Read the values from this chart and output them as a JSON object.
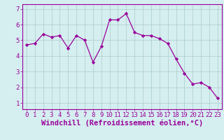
{
  "x": [
    0,
    1,
    2,
    3,
    4,
    5,
    6,
    7,
    8,
    9,
    10,
    11,
    12,
    13,
    14,
    15,
    16,
    17,
    18,
    19,
    20,
    21,
    22,
    23
  ],
  "y": [
    4.7,
    4.8,
    5.4,
    5.2,
    5.3,
    4.5,
    5.3,
    5.0,
    3.6,
    4.6,
    6.3,
    6.3,
    6.7,
    5.5,
    5.3,
    5.3,
    5.1,
    4.8,
    3.8,
    2.9,
    2.2,
    2.3,
    2.0,
    1.3
  ],
  "line_color": "#990099",
  "marker_color": "#990099",
  "bg_color": "#d5eef0",
  "grid_color": "#aacccc",
  "axis_color": "#990099",
  "xlabel": "Windchill (Refroidissement éolien,°C)",
  "ylabel": "",
  "title": "",
  "xlim": [
    -0.5,
    23.5
  ],
  "ylim": [
    0.6,
    7.3
  ],
  "yticks": [
    1,
    2,
    3,
    4,
    5,
    6,
    7
  ],
  "xticks": [
    0,
    1,
    2,
    3,
    4,
    5,
    6,
    7,
    8,
    9,
    10,
    11,
    12,
    13,
    14,
    15,
    16,
    17,
    18,
    19,
    20,
    21,
    22,
    23
  ],
  "font_color": "#990099",
  "font_size": 6.5,
  "xlabel_fontsize": 7.5
}
